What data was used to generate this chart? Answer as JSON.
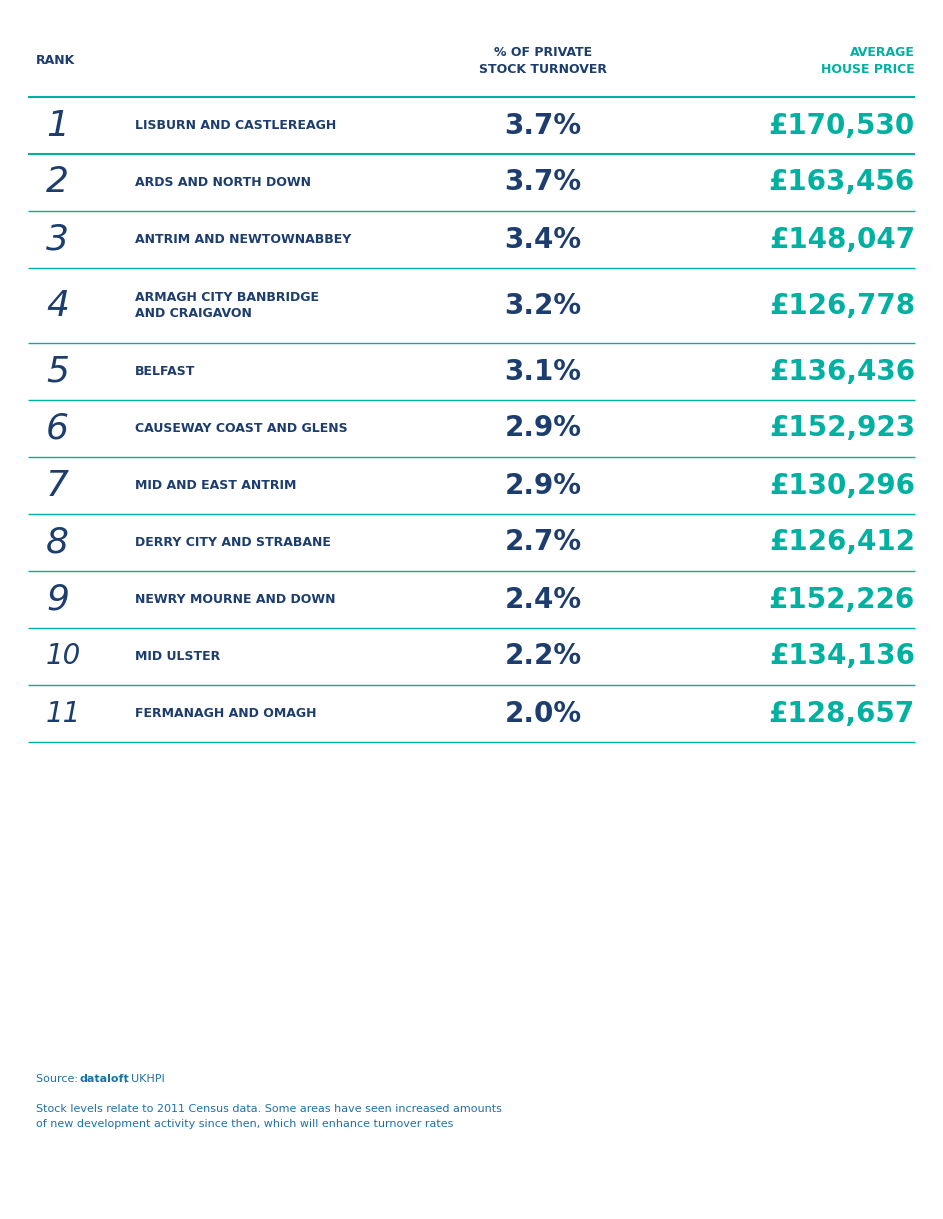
{
  "header_rank": "RANK",
  "header_turnover": "% OF PRIVATE\nSTOCK TURNOVER",
  "header_price": "AVERAGE\nHOUSE PRICE",
  "rows": [
    {
      "rank": "1",
      "area": "LISBURN AND CASTLEREAGH",
      "turnover": "3.7%",
      "price": "£170,530",
      "two_line": false
    },
    {
      "rank": "2",
      "area": "ARDS AND NORTH DOWN",
      "turnover": "3.7%",
      "price": "£163,456",
      "two_line": false
    },
    {
      "rank": "3",
      "area": "ANTRIM AND NEWTOWNABBEY",
      "turnover": "3.4%",
      "price": "£148,047",
      "two_line": false
    },
    {
      "rank": "4",
      "area": "ARMAGH CITY BANBRIDGE\nAND CRAIGAVON",
      "turnover": "3.2%",
      "price": "£126,778",
      "two_line": true
    },
    {
      "rank": "5",
      "area": "BELFAST",
      "turnover": "3.1%",
      "price": "£136,436",
      "two_line": false
    },
    {
      "rank": "6",
      "area": "CAUSEWAY COAST AND GLENS",
      "turnover": "2.9%",
      "price": "£152,923",
      "two_line": false
    },
    {
      "rank": "7",
      "area": "MID AND EAST ANTRIM",
      "turnover": "2.9%",
      "price": "£130,296",
      "two_line": false
    },
    {
      "rank": "8",
      "area": "DERRY CITY AND STRABANE",
      "turnover": "2.7%",
      "price": "£126,412",
      "two_line": false
    },
    {
      "rank": "9",
      "area": "NEWRY MOURNE AND DOWN",
      "turnover": "2.4%",
      "price": "£152,226",
      "two_line": false
    },
    {
      "rank": "10",
      "area": "MID ULSTER",
      "turnover": "2.2%",
      "price": "£134,136",
      "two_line": false
    },
    {
      "rank": "11",
      "area": "FERMANAGH AND OMAGH",
      "turnover": "2.0%",
      "price": "£128,657",
      "two_line": false
    }
  ],
  "rank_color": "#1c3d6e",
  "area_color": "#1c3d6e",
  "turnover_color": "#1c3d6e",
  "price_color": "#00b0a0",
  "header_turnover_color": "#1c3d6e",
  "header_price_color": "#00b0a0",
  "header_rank_color": "#1c3d6e",
  "line_color": "#00b0a0",
  "bg_color": "#ffffff",
  "source_prefix": "Source: ",
  "source_bold": "dataloft",
  "source_rest": ", UKHPI",
  "source_note": "Stock levels relate to 2011 Census data. Some areas have seen increased amounts\nof new development activity since then, which will enhance turnover rates",
  "source_color": "#2070a8"
}
